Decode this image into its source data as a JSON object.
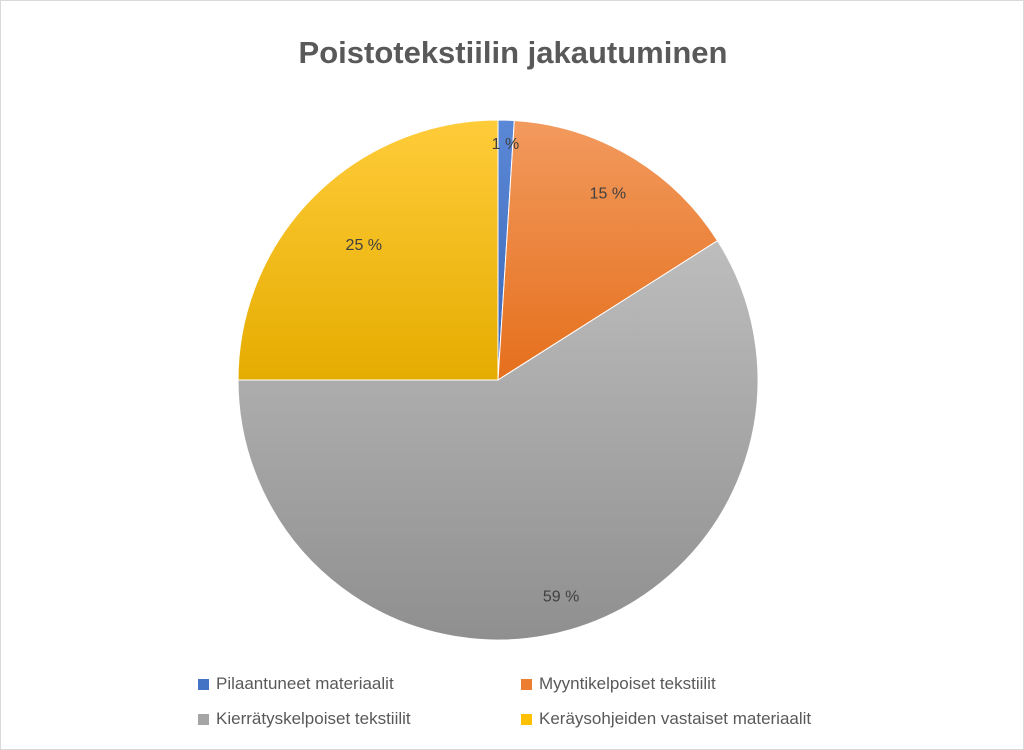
{
  "chart_data": {
    "type": "pie",
    "title": "Poistotekstiilin jakautuminen",
    "categories": [
      "Pilaantuneet materiaalit",
      "Myyntikelpoiset tekstiilit",
      "Kierrätyskelpoiset tekstiilit",
      "Keräysohjeiden vastaiset materiaalit"
    ],
    "values": [
      1,
      15,
      59,
      25
    ],
    "data_labels": [
      "1 %",
      "15 %",
      "59 %",
      "25 %"
    ],
    "colors": [
      "#4472c4",
      "#ed7d31",
      "#a5a5a5",
      "#ffc000"
    ],
    "legend_position": "bottom"
  }
}
